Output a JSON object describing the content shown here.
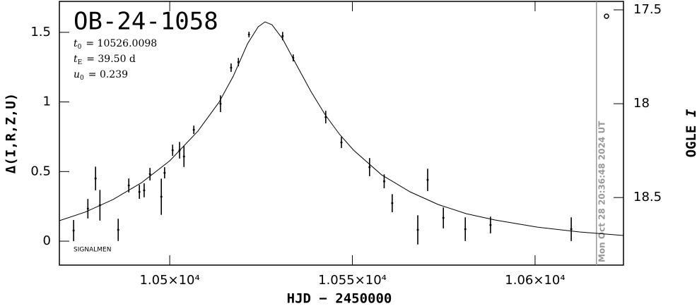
{
  "chart_data": {
    "type": "errorbar",
    "title": "OB-24-1058",
    "parameters": [
      {
        "symbol": "t",
        "subscript": "0",
        "text": "= 10526.0098"
      },
      {
        "symbol": "t",
        "subscript": "E",
        "text": "= 39.50 d"
      },
      {
        "symbol": "u",
        "subscript": "0",
        "text": "= 0.239"
      }
    ],
    "note": "SIGNALMEN",
    "timestamp": "Mon Oct 28 20:36:48 2024 UT",
    "timestamp_x": 10616.8,
    "x_label": "HJD − 2450000",
    "y_label": "Δ(I,R,Z,U)",
    "y2_label": {
      "text": "OGLE ",
      "italic": "I"
    },
    "xlim": [
      10469.8,
      10624.2
    ],
    "xticks": [
      {
        "value": 10500,
        "label": "1.05×10⁴"
      },
      {
        "value": 10550,
        "label": "1.055×10⁴"
      },
      {
        "value": 10600,
        "label": "1.06×10⁴"
      }
    ],
    "ylim": [
      -0.172,
      1.722
    ],
    "yticks": [
      0,
      0.5,
      1,
      1.5
    ],
    "y2lim": [
      17.455,
      18.86
    ],
    "y2ticks": [
      17.5,
      18,
      18.5
    ],
    "color": "#000000",
    "series": [
      {
        "type": "errorbar",
        "x": [
          10473.7,
          10477.6,
          10479.7,
          10480.9,
          10485.9,
          10488.8,
          10491.7,
          10493.0,
          10494.6,
          10497.7,
          10498.6,
          10500.8,
          10502.7,
          10503.9,
          10506.6,
          10513.9,
          10516.8,
          10518.8,
          10521.7,
          10530.9,
          10533.8,
          10542.7,
          10547.0,
          10554.7,
          10558.7,
          10560.9,
          10567.9,
          10570.6,
          10574.9,
          10580.9,
          10587.8,
          10609.9
        ],
        "values": [
          0.076,
          0.233,
          0.45,
          0.258,
          0.081,
          0.4,
          0.354,
          0.365,
          0.481,
          0.319,
          0.491,
          0.653,
          0.653,
          0.608,
          0.8,
          0.987,
          1.246,
          1.286,
          1.484,
          1.473,
          1.316,
          0.891,
          0.709,
          0.532,
          0.43,
          0.273,
          0.081,
          0.44,
          0.167,
          0.086,
          0.116,
          0.086
        ],
        "errors": [
          0.076,
          0.07,
          0.085,
          0.11,
          0.08,
          0.05,
          0.05,
          0.05,
          0.045,
          0.13,
          0.04,
          0.04,
          0.06,
          0.075,
          0.03,
          0.06,
          0.03,
          0.03,
          0.02,
          0.03,
          0.025,
          0.045,
          0.04,
          0.065,
          0.05,
          0.065,
          0.105,
          0.08,
          0.075,
          0.085,
          0.06,
          0.085
        ]
      },
      {
        "type": "line",
        "x": [
          10469.8,
          10476.8,
          10484.5,
          10492.3,
          10500.0,
          10507.7,
          10513.5,
          10517.4,
          10521.3,
          10524.2,
          10526.1,
          10528.0,
          10530.9,
          10534.8,
          10538.7,
          10542.6,
          10546.4,
          10550.3,
          10558.0,
          10565.8,
          10573.5,
          10581.2,
          10589.0,
          10600.6,
          10612.2,
          10624.2
        ],
        "values": [
          0.147,
          0.208,
          0.299,
          0.42,
          0.577,
          0.79,
          0.998,
          1.185,
          1.418,
          1.539,
          1.575,
          1.554,
          1.453,
          1.261,
          1.073,
          0.906,
          0.77,
          0.654,
          0.476,
          0.354,
          0.263,
          0.197,
          0.152,
          0.101,
          0.066,
          0.041
        ]
      }
    ]
  }
}
